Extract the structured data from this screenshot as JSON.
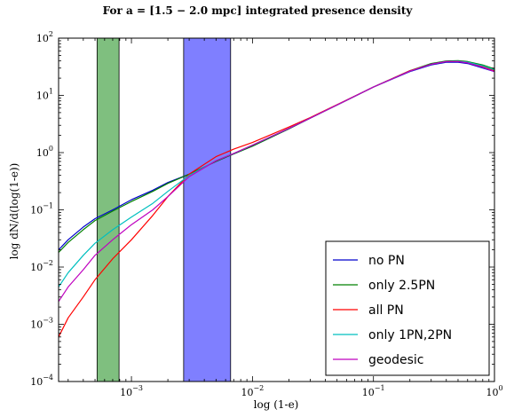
{
  "chart_data": {
    "type": "line",
    "title": "For a = [1.5 − 2.0 mpc] integrated presence density",
    "xlabel": "log (1-e)",
    "ylabel": "log dN/d(log(1-e))",
    "xscale": "log",
    "yscale": "log",
    "xlim": [
      0.00025,
      1.0
    ],
    "ylim": [
      0.0001,
      100
    ],
    "grid": false,
    "legend_position": "lower-right",
    "x_ticks": [
      {
        "value": 0.001,
        "base": "10",
        "exp": "−3"
      },
      {
        "value": 0.01,
        "base": "10",
        "exp": "−2"
      },
      {
        "value": 0.1,
        "base": "10",
        "exp": "−1"
      },
      {
        "value": 1,
        "base": "10",
        "exp": "0"
      }
    ],
    "y_ticks": [
      {
        "value": 0.0001,
        "base": "10",
        "exp": "−4"
      },
      {
        "value": 0.001,
        "base": "10",
        "exp": "−3"
      },
      {
        "value": 0.01,
        "base": "10",
        "exp": "−2"
      },
      {
        "value": 0.1,
        "base": "10",
        "exp": "−1"
      },
      {
        "value": 1,
        "base": "10",
        "exp": "0"
      },
      {
        "value": 10,
        "base": "10",
        "exp": "1"
      },
      {
        "value": 100,
        "base": "10",
        "exp": "2"
      }
    ],
    "bands": [
      {
        "x_start": 0.00052,
        "x_end": 0.00079,
        "color": "#7fbf7f"
      },
      {
        "x_start": 0.0027,
        "x_end": 0.0066,
        "color": "#7f7fff"
      }
    ],
    "series": [
      {
        "name": "no PN",
        "color": "#0000cc",
        "points": [
          [
            0.00025,
            0.02
          ],
          [
            0.0003,
            0.03
          ],
          [
            0.0004,
            0.05
          ],
          [
            0.0005,
            0.07
          ],
          [
            0.0007,
            0.1
          ],
          [
            0.001,
            0.15
          ],
          [
            0.0015,
            0.22
          ],
          [
            0.002,
            0.3
          ],
          [
            0.003,
            0.42
          ],
          [
            0.005,
            0.7
          ],
          [
            0.007,
            0.95
          ],
          [
            0.01,
            1.3
          ],
          [
            0.02,
            2.6
          ],
          [
            0.03,
            4
          ],
          [
            0.05,
            6.8
          ],
          [
            0.1,
            14
          ],
          [
            0.2,
            26
          ],
          [
            0.3,
            34
          ],
          [
            0.4,
            38
          ],
          [
            0.5,
            38
          ],
          [
            0.6,
            36
          ],
          [
            0.8,
            30
          ],
          [
            1.0,
            26
          ]
        ]
      },
      {
        "name": "only 2.5PN",
        "color": "#008000",
        "points": [
          [
            0.00025,
            0.018
          ],
          [
            0.0003,
            0.027
          ],
          [
            0.0004,
            0.045
          ],
          [
            0.0005,
            0.065
          ],
          [
            0.0007,
            0.095
          ],
          [
            0.001,
            0.14
          ],
          [
            0.0015,
            0.21
          ],
          [
            0.002,
            0.29
          ],
          [
            0.003,
            0.42
          ],
          [
            0.005,
            0.7
          ],
          [
            0.007,
            0.95
          ],
          [
            0.01,
            1.3
          ],
          [
            0.02,
            2.6
          ],
          [
            0.03,
            4
          ],
          [
            0.05,
            6.8
          ],
          [
            0.1,
            14
          ],
          [
            0.2,
            27
          ],
          [
            0.3,
            36
          ],
          [
            0.4,
            40
          ],
          [
            0.5,
            40.5
          ],
          [
            0.6,
            39
          ],
          [
            0.8,
            34
          ],
          [
            1.0,
            29
          ]
        ]
      },
      {
        "name": "all PN",
        "color": "#ff0000",
        "points": [
          [
            0.00025,
            0.0006
          ],
          [
            0.0003,
            0.0013
          ],
          [
            0.0004,
            0.003
          ],
          [
            0.0005,
            0.006
          ],
          [
            0.0007,
            0.014
          ],
          [
            0.001,
            0.03
          ],
          [
            0.0015,
            0.08
          ],
          [
            0.002,
            0.17
          ],
          [
            0.003,
            0.42
          ],
          [
            0.005,
            0.85
          ],
          [
            0.007,
            1.15
          ],
          [
            0.01,
            1.5
          ],
          [
            0.02,
            2.8
          ],
          [
            0.03,
            4.1
          ],
          [
            0.05,
            6.9
          ],
          [
            0.1,
            14
          ],
          [
            0.2,
            27
          ],
          [
            0.3,
            35
          ],
          [
            0.4,
            39
          ],
          [
            0.5,
            39.5
          ],
          [
            0.6,
            38
          ],
          [
            0.8,
            32
          ],
          [
            1.0,
            27
          ]
        ]
      },
      {
        "name": "only 1PN,2PN",
        "color": "#00bfbf",
        "points": [
          [
            0.00025,
            0.0045
          ],
          [
            0.0003,
            0.008
          ],
          [
            0.0004,
            0.016
          ],
          [
            0.0005,
            0.026
          ],
          [
            0.0007,
            0.045
          ],
          [
            0.001,
            0.075
          ],
          [
            0.0015,
            0.13
          ],
          [
            0.002,
            0.21
          ],
          [
            0.003,
            0.4
          ],
          [
            0.005,
            0.72
          ],
          [
            0.007,
            0.97
          ],
          [
            0.01,
            1.35
          ],
          [
            0.02,
            2.65
          ],
          [
            0.03,
            4
          ],
          [
            0.05,
            6.8
          ],
          [
            0.1,
            14
          ],
          [
            0.2,
            26.5
          ],
          [
            0.3,
            35
          ],
          [
            0.4,
            39
          ],
          [
            0.5,
            39.5
          ],
          [
            0.6,
            38
          ],
          [
            0.8,
            33
          ],
          [
            1.0,
            28
          ]
        ]
      },
      {
        "name": "geodesic",
        "color": "#bf00bf",
        "points": [
          [
            0.00025,
            0.0025
          ],
          [
            0.0003,
            0.0045
          ],
          [
            0.0004,
            0.009
          ],
          [
            0.0005,
            0.016
          ],
          [
            0.0007,
            0.03
          ],
          [
            0.001,
            0.055
          ],
          [
            0.0015,
            0.1
          ],
          [
            0.002,
            0.17
          ],
          [
            0.003,
            0.38
          ],
          [
            0.005,
            0.72
          ],
          [
            0.007,
            0.97
          ],
          [
            0.01,
            1.35
          ],
          [
            0.02,
            2.65
          ],
          [
            0.03,
            4
          ],
          [
            0.05,
            6.8
          ],
          [
            0.1,
            14
          ],
          [
            0.2,
            26.5
          ],
          [
            0.3,
            35
          ],
          [
            0.4,
            39
          ],
          [
            0.5,
            39
          ],
          [
            0.6,
            37
          ],
          [
            0.8,
            31
          ],
          [
            1.0,
            26
          ]
        ]
      }
    ]
  }
}
